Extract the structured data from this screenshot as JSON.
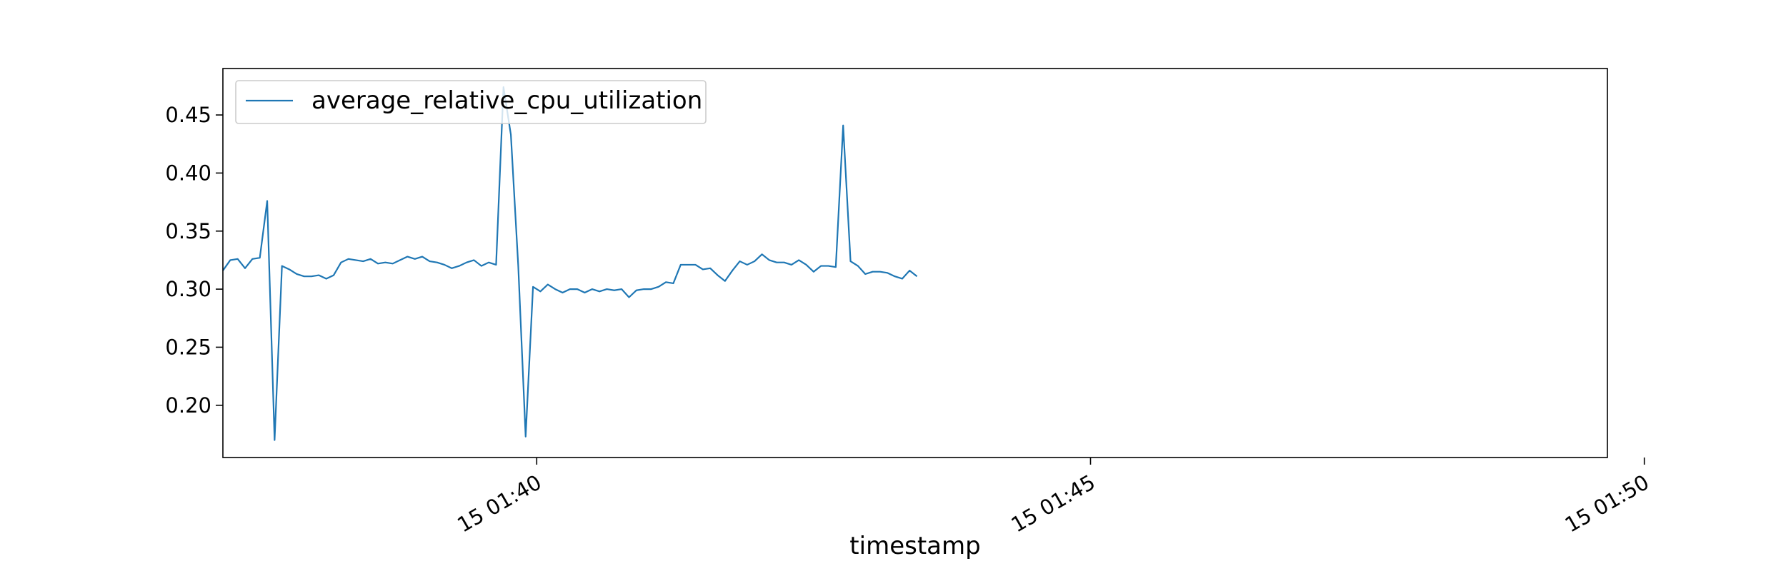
{
  "chart_data": {
    "type": "line",
    "title": "",
    "xlabel": "timestamp",
    "ylabel": "",
    "x_start_seconds": 0,
    "x_step_seconds": 4,
    "x_start_label": "15 01:37:10",
    "x_range_seconds": [
      0,
      750
    ],
    "ylim": [
      0.155,
      0.49
    ],
    "x_ticks": [
      {
        "label": "15 01:40",
        "seconds": 170
      },
      {
        "label": "15 01:45",
        "seconds": 470
      },
      {
        "label": "15 01:50",
        "seconds": 770
      }
    ],
    "y_ticks": [
      {
        "label": "0.20",
        "value": 0.2
      },
      {
        "label": "0.25",
        "value": 0.25
      },
      {
        "label": "0.30",
        "value": 0.3
      },
      {
        "label": "0.35",
        "value": 0.35
      },
      {
        "label": "0.40",
        "value": 0.4
      },
      {
        "label": "0.45",
        "value": 0.45
      }
    ],
    "legend_placement": "upper-left",
    "series": [
      {
        "name": "average_relative_cpu_utilization",
        "color": "#1f77b4",
        "values": [
          0.316,
          0.325,
          0.326,
          0.318,
          0.326,
          0.327,
          0.376,
          0.17,
          0.32,
          0.317,
          0.313,
          0.311,
          0.311,
          0.312,
          0.309,
          0.312,
          0.323,
          0.326,
          0.325,
          0.324,
          0.326,
          0.322,
          0.323,
          0.322,
          0.325,
          0.328,
          0.326,
          0.328,
          0.324,
          0.323,
          0.321,
          0.318,
          0.32,
          0.323,
          0.325,
          0.32,
          0.323,
          0.321,
          0.474,
          0.433,
          0.32,
          0.173,
          0.302,
          0.298,
          0.304,
          0.3,
          0.297,
          0.3,
          0.3,
          0.297,
          0.3,
          0.298,
          0.3,
          0.299,
          0.3,
          0.293,
          0.299,
          0.3,
          0.3,
          0.302,
          0.306,
          0.305,
          0.321,
          0.321,
          0.321,
          0.317,
          0.318,
          0.312,
          0.307,
          0.316,
          0.324,
          0.321,
          0.324,
          0.33,
          0.325,
          0.323,
          0.323,
          0.321,
          0.325,
          0.321,
          0.315,
          0.32,
          0.32,
          0.319,
          0.441,
          0.324,
          0.32,
          0.313,
          0.315,
          0.315,
          0.314,
          0.311,
          0.309,
          0.316,
          0.311
        ]
      }
    ]
  }
}
